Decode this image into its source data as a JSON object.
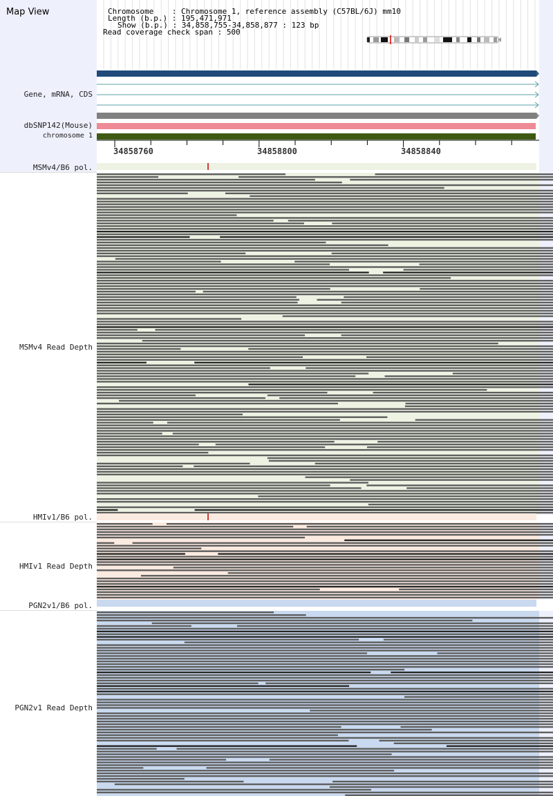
{
  "title": "Map View",
  "info": {
    "chromosome_label": "Chromosome    :",
    "chromosome_value": "Chromosome 1, reference assembly (C57BL/6J) mm10",
    "length_label": "Length (b.p.) :",
    "length_value": "195,471,971",
    "show_label": "Show (b.p.) :",
    "show_value": "34,858,755-34,858,877 : 123 bp",
    "span_label": "Read coverage check span :",
    "span_value": "500"
  },
  "tracks": {
    "gene": "Gene, mRNA, CDS",
    "snp": "dbSNP142(Mouse)",
    "chrom": "chromosome 1",
    "msm_pol": "MSMv4/B6 pol.",
    "msm_depth": "MSMv4 Read Depth",
    "hmi_pol": "HMIv1/B6 pol.",
    "hmi_depth": "HMIv1 Read Depth",
    "pgn_pol": "PGN2v1/B6 pol.",
    "pgn_depth": "PGN2v1 Read Depth"
  },
  "ruler": {
    "ticks": [
      "34858760",
      "34858800",
      "34858840"
    ]
  },
  "colors": {
    "panel": "#eef0fb",
    "gene_bar": "#1f4a7a",
    "gene_lines": "#5aa0a8",
    "grey_bar": "#808080",
    "snp_bar": "#ee8a96",
    "chrom_bar": "#3e5a12",
    "msm_bg": "#edf2e3",
    "hmi_bg": "#fbeae0",
    "pgn_bg": "#c9d9ef",
    "read": "#5e5e5e",
    "read_dark": "#262626"
  }
}
